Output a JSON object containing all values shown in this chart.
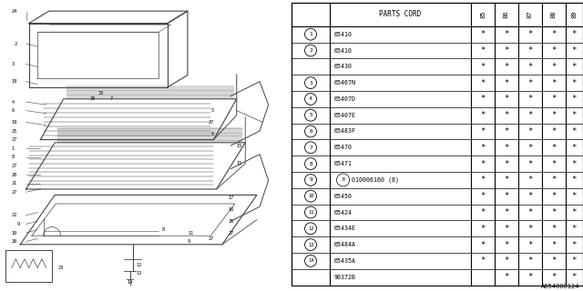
{
  "doc_number": "A654000124",
  "rows": [
    {
      "num": "1",
      "circled": true,
      "part": "65410",
      "stars": [
        true,
        true,
        true,
        true,
        true
      ]
    },
    {
      "num": "2",
      "circled": true,
      "part": "65410",
      "stars": [
        true,
        true,
        true,
        true,
        true
      ]
    },
    {
      "num": "",
      "circled": false,
      "part": "65430",
      "stars": [
        true,
        true,
        true,
        true,
        true
      ]
    },
    {
      "num": "3",
      "circled": true,
      "part": "65467N",
      "stars": [
        true,
        true,
        true,
        true,
        true
      ]
    },
    {
      "num": "4",
      "circled": true,
      "part": "65407D",
      "stars": [
        true,
        true,
        true,
        true,
        true
      ]
    },
    {
      "num": "5",
      "circled": true,
      "part": "65407E",
      "stars": [
        true,
        true,
        true,
        true,
        true
      ]
    },
    {
      "num": "6",
      "circled": true,
      "part": "65483F",
      "stars": [
        true,
        true,
        true,
        true,
        true
      ]
    },
    {
      "num": "7",
      "circled": true,
      "part": "65470",
      "stars": [
        true,
        true,
        true,
        true,
        true
      ]
    },
    {
      "num": "8",
      "circled": true,
      "part": "65471",
      "stars": [
        true,
        true,
        true,
        true,
        true
      ]
    },
    {
      "num": "9",
      "circled": true,
      "part": "B010006160 (8)",
      "stars": [
        true,
        true,
        true,
        true,
        true
      ]
    },
    {
      "num": "10",
      "circled": true,
      "part": "65450",
      "stars": [
        true,
        true,
        true,
        true,
        true
      ]
    },
    {
      "num": "11",
      "circled": true,
      "part": "65424",
      "stars": [
        true,
        true,
        true,
        true,
        true
      ]
    },
    {
      "num": "12",
      "circled": true,
      "part": "65434E",
      "stars": [
        true,
        true,
        true,
        true,
        true
      ]
    },
    {
      "num": "13",
      "circled": true,
      "part": "65484A",
      "stars": [
        true,
        true,
        true,
        true,
        true
      ]
    },
    {
      "num": "14",
      "circled": true,
      "part": "65435A",
      "stars": [
        true,
        true,
        true,
        true,
        true
      ]
    },
    {
      "num": "",
      "circled": false,
      "part": "90372B",
      "stars": [
        false,
        true,
        true,
        true,
        true
      ]
    }
  ],
  "year_labels": [
    "85",
    "86",
    "87",
    "88",
    "89"
  ],
  "bg_color": "#ffffff",
  "lc": "#000000",
  "gc": "#444444",
  "diag_split": 0.495
}
